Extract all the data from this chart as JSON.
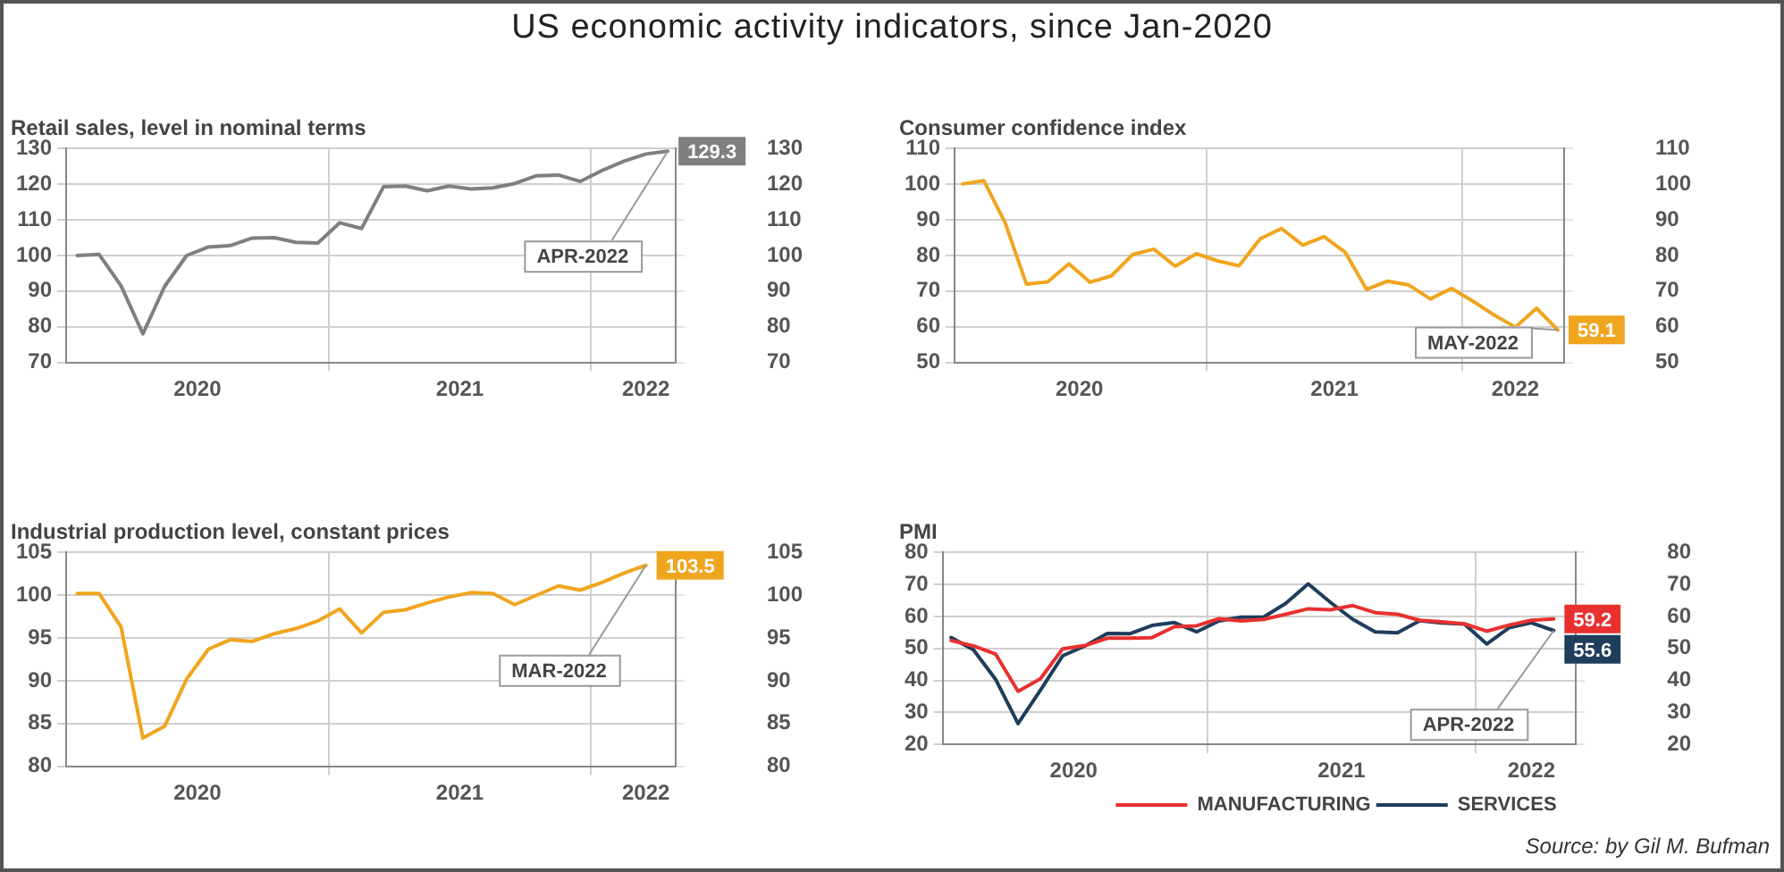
{
  "chart_data": [
    {
      "type": "other",
      "title": "US economic activity indicators, since Jan-2020"
    },
    {
      "type": "line",
      "title": "Retail sales, level in nominal terms",
      "grid": true,
      "x": [
        "2020-01",
        "2020-02",
        "2020-03",
        "2020-04",
        "2020-05",
        "2020-06",
        "2020-07",
        "2020-08",
        "2020-09",
        "2020-10",
        "2020-11",
        "2020-12",
        "2021-01",
        "2021-02",
        "2021-03",
        "2021-04",
        "2021-05",
        "2021-06",
        "2021-07",
        "2021-08",
        "2021-09",
        "2021-10",
        "2021-11",
        "2021-12",
        "2022-01",
        "2022-02",
        "2022-03",
        "2022-04"
      ],
      "series": [
        {
          "color": "#7f7f7f",
          "values": [
            100,
            100.3,
            91.5,
            78,
            91.4,
            100,
            102.4,
            102.8,
            104.9,
            105,
            103.7,
            103.5,
            109.2,
            107.6,
            119.3,
            119.5,
            118.2,
            119.5,
            118.7,
            119,
            120.2,
            122.4,
            122.6,
            120.8,
            123.9,
            126.5,
            128.5,
            129.3
          ],
          "value_labels": [
            null,
            null,
            null,
            null,
            null,
            null,
            null,
            null,
            null,
            null,
            null,
            null,
            null,
            null,
            null,
            null,
            null,
            null,
            null,
            null,
            null,
            null,
            null,
            null,
            null,
            null,
            null,
            "129.3"
          ]
        }
      ],
      "xlim": [
        "2019-12-16",
        "2022-04-12"
      ],
      "xticks": [
        {
          "value": "2020-06-16",
          "label": "2020"
        },
        {
          "value": "2020-12-16",
          "label": null
        },
        {
          "value": "2021-06-16",
          "label": "2021"
        },
        {
          "value": "2021-12-16",
          "label": null
        },
        {
          "value": "2022-03-01",
          "label": "2022"
        }
      ],
      "ylim": [
        70,
        130
      ],
      "yticks": [
        70,
        80,
        90,
        100,
        110,
        120,
        130
      ],
      "y2lim": [
        70,
        130
      ],
      "y2ticks": [
        70,
        80,
        90,
        100,
        110,
        120,
        130
      ],
      "annotations": [
        {
          "text": "APR-2022",
          "x": "2022-04",
          "y": 129.3
        }
      ]
    },
    {
      "type": "line",
      "title": "Consumer confidence index",
      "grid": true,
      "x": [
        "2020-01",
        "2020-02",
        "2020-03",
        "2020-04",
        "2020-05",
        "2020-06",
        "2020-07",
        "2020-08",
        "2020-09",
        "2020-10",
        "2020-11",
        "2020-12",
        "2021-01",
        "2021-02",
        "2021-03",
        "2021-04",
        "2021-05",
        "2021-06",
        "2021-07",
        "2021-08",
        "2021-09",
        "2021-10",
        "2021-11",
        "2021-12",
        "2022-01",
        "2022-02",
        "2022-03",
        "2022-04",
        "2022-05"
      ],
      "series": [
        {
          "color": "#f0a51e",
          "values": [
            100.1,
            101,
            89.2,
            72,
            72.6,
            77.7,
            72.5,
            74.3,
            80.3,
            81.8,
            77,
            80.5,
            78.5,
            77.1,
            84.7,
            87.6,
            82.9,
            85.3,
            80.9,
            70.5,
            72.8,
            71.7,
            67.8,
            70.8,
            67.2,
            63.3,
            59.9,
            65.2,
            59.1
          ],
          "value_labels": [
            null,
            null,
            null,
            null,
            null,
            null,
            null,
            null,
            null,
            null,
            null,
            null,
            null,
            null,
            null,
            null,
            null,
            null,
            null,
            null,
            null,
            null,
            null,
            null,
            null,
            null,
            null,
            null,
            "59.1"
          ]
        }
      ],
      "xlim": [
        "2019-12-20",
        "2022-05-10"
      ],
      "xticks": [
        {
          "value": "2020-06-16",
          "label": "2020"
        },
        {
          "value": "2020-12-16",
          "label": null
        },
        {
          "value": "2021-06-16",
          "label": "2021"
        },
        {
          "value": "2021-12-16",
          "label": null
        },
        {
          "value": "2022-03-01",
          "label": "2022"
        }
      ],
      "ylim": [
        50,
        110
      ],
      "yticks": [
        50,
        60,
        70,
        80,
        90,
        100,
        110
      ],
      "y2lim": [
        50,
        110
      ],
      "y2ticks": [
        50,
        60,
        70,
        80,
        90,
        100,
        110
      ],
      "annotations": [
        {
          "text": "MAY-2022",
          "x": "2022-05",
          "y": 59.1
        }
      ]
    },
    {
      "type": "line",
      "title": "Industrial production level, constant prices",
      "grid": true,
      "x": [
        "2020-01",
        "2020-02",
        "2020-03",
        "2020-04",
        "2020-05",
        "2020-06",
        "2020-07",
        "2020-08",
        "2020-09",
        "2020-10",
        "2020-11",
        "2020-12",
        "2021-01",
        "2021-02",
        "2021-03",
        "2021-04",
        "2021-05",
        "2021-06",
        "2021-07",
        "2021-08",
        "2021-09",
        "2021-10",
        "2021-11",
        "2021-12",
        "2022-01",
        "2022-02",
        "2022-03"
      ],
      "series": [
        {
          "color": "#f0a51e",
          "values": [
            100.2,
            100.2,
            96.3,
            83.3,
            84.7,
            90.2,
            93.7,
            94.8,
            94.6,
            95.5,
            96.1,
            97,
            98.4,
            95.6,
            98,
            98.3,
            99.1,
            99.8,
            100.3,
            100.2,
            98.9,
            100,
            101.1,
            100.6,
            101.5,
            102.6,
            103.5
          ],
          "value_labels": [
            null,
            null,
            null,
            null,
            null,
            null,
            null,
            null,
            null,
            null,
            null,
            null,
            null,
            null,
            null,
            null,
            null,
            null,
            null,
            null,
            null,
            null,
            null,
            null,
            null,
            null,
            "103.5"
          ]
        }
      ],
      "xlim": [
        "2019-12-16",
        "2022-04-12"
      ],
      "xticks": [
        {
          "value": "2020-06-16",
          "label": "2020"
        },
        {
          "value": "2020-12-16",
          "label": null
        },
        {
          "value": "2021-06-16",
          "label": "2021"
        },
        {
          "value": "2021-12-16",
          "label": null
        },
        {
          "value": "2022-03-01",
          "label": "2022"
        }
      ],
      "ylim": [
        80,
        105
      ],
      "yticks": [
        80,
        85,
        90,
        95,
        100,
        105
      ],
      "y2lim": [
        80,
        105
      ],
      "y2ticks": [
        80,
        85,
        90,
        95,
        100,
        105
      ],
      "annotations": [
        {
          "text": "MAR-2022",
          "x": "2022-03",
          "y": 103.5
        }
      ]
    },
    {
      "type": "line",
      "title": "PMI",
      "grid": true,
      "legend": "bottom",
      "x": [
        "2020-01",
        "2020-02",
        "2020-03",
        "2020-04",
        "2020-05",
        "2020-06",
        "2020-07",
        "2020-08",
        "2020-09",
        "2020-10",
        "2020-11",
        "2020-12",
        "2021-01",
        "2021-02",
        "2021-03",
        "2021-04",
        "2021-05",
        "2021-06",
        "2021-07",
        "2021-08",
        "2021-09",
        "2021-10",
        "2021-11",
        "2021-12",
        "2022-01",
        "2022-02",
        "2022-03",
        "2022-04"
      ],
      "series": [
        {
          "name": "MANUFACTURING",
          "color": "#e8312f",
          "values": [
            52.5,
            50.8,
            48.2,
            36.6,
            40.5,
            49.9,
            50.9,
            53.2,
            53.2,
            53.4,
            56.8,
            57.1,
            59.3,
            58.6,
            59.1,
            60.7,
            62.4,
            62.1,
            63.4,
            61.2,
            60.7,
            58.8,
            58.3,
            57.7,
            55.4,
            57.3,
            58.8,
            59.2
          ],
          "value_labels": [
            null,
            null,
            null,
            null,
            null,
            null,
            null,
            null,
            null,
            null,
            null,
            null,
            null,
            null,
            null,
            null,
            null,
            null,
            null,
            null,
            null,
            null,
            null,
            null,
            null,
            null,
            null,
            "59.2"
          ]
        },
        {
          "name": "SERVICES",
          "color": "#1f3d5c",
          "values": [
            53.4,
            49.6,
            40.3,
            26.5,
            36.9,
            47.7,
            50.8,
            54.7,
            54.6,
            57.2,
            58.1,
            55.2,
            58.6,
            59.8,
            59.8,
            64.1,
            70.2,
            64.4,
            59.1,
            55.2,
            54.9,
            58.7,
            58,
            57.6,
            51.4,
            56.5,
            58,
            55.6
          ],
          "value_labels": [
            null,
            null,
            null,
            null,
            null,
            null,
            null,
            null,
            null,
            null,
            null,
            null,
            null,
            null,
            null,
            null,
            null,
            null,
            null,
            null,
            null,
            null,
            null,
            null,
            null,
            null,
            null,
            "55.6"
          ]
        }
      ],
      "xlim": [
        "2019-12-20",
        "2022-05-01"
      ],
      "xticks": [
        {
          "value": "2020-06-16",
          "label": "2020"
        },
        {
          "value": "2020-12-16",
          "label": null
        },
        {
          "value": "2021-06-16",
          "label": "2021"
        },
        {
          "value": "2021-12-16",
          "label": null
        },
        {
          "value": "2022-03-01",
          "label": "2022"
        }
      ],
      "ylim": [
        20,
        80
      ],
      "yticks": [
        20,
        30,
        40,
        50,
        60,
        70,
        80
      ],
      "y2lim": [
        20,
        80
      ],
      "y2ticks": [
        20,
        30,
        40,
        50,
        60,
        70,
        80
      ],
      "annotations": [
        {
          "text": "APR-2022",
          "x": "2022-04",
          "y": 55.6
        },
        "Source: by Gil M. Bufman"
      ]
    }
  ]
}
